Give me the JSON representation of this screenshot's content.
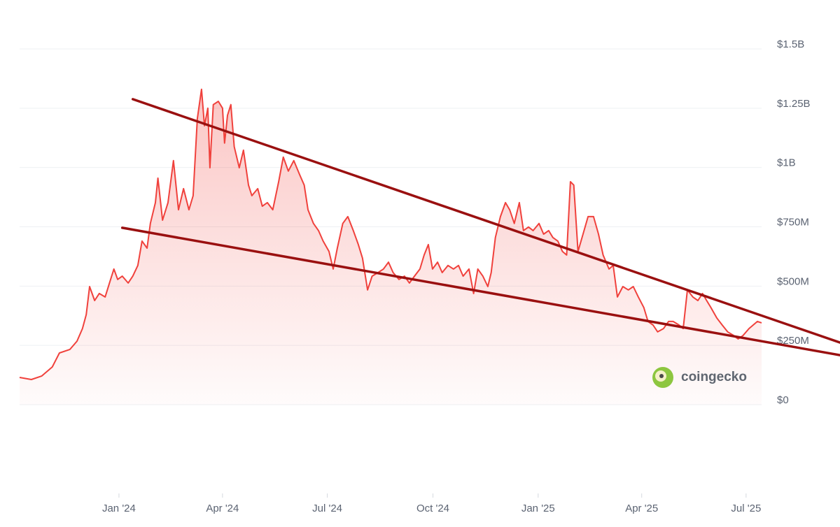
{
  "chart_data": {
    "type": "line",
    "color": "#f0413c",
    "grid": true,
    "watermark": "coingecko",
    "xlim": [
      2023.763,
      2025.533
    ],
    "xticks": [
      {
        "value": 2024.0,
        "label": "Jan '24"
      },
      {
        "value": 2024.247,
        "label": "Apr '24"
      },
      {
        "value": 2024.497,
        "label": "Jul '24"
      },
      {
        "value": 2024.749,
        "label": "Oct '24"
      },
      {
        "value": 2025.0,
        "label": "Jan '25"
      },
      {
        "value": 2025.247,
        "label": "Apr '25"
      },
      {
        "value": 2025.496,
        "label": "Jul '25"
      }
    ],
    "ylim": [
      0,
      1500000000
    ],
    "yticks": [
      {
        "value": 0,
        "label": "$0"
      },
      {
        "value": 250000000,
        "label": "$250M"
      },
      {
        "value": 500000000,
        "label": "$500M"
      },
      {
        "value": 750000000,
        "label": "$750M"
      },
      {
        "value": 1000000000,
        "label": "$1B"
      },
      {
        "value": 1250000000,
        "label": "$1.25B"
      },
      {
        "value": 1500000000,
        "label": "$1.5B"
      }
    ],
    "x": [
      2023.763,
      2023.791,
      2023.816,
      2023.841,
      2023.858,
      2023.883,
      2023.9,
      2023.913,
      2023.922,
      2023.93,
      2023.942,
      2023.953,
      2023.967,
      2023.98,
      2023.988,
      2023.997,
      2024.008,
      2024.022,
      2024.033,
      2024.045,
      2024.055,
      2024.067,
      2024.075,
      2024.087,
      2024.093,
      2024.104,
      2024.117,
      2024.13,
      2024.142,
      2024.154,
      2024.167,
      2024.177,
      2024.187,
      2024.197,
      2024.204,
      2024.212,
      2024.217,
      2024.225,
      2024.237,
      2024.247,
      2024.252,
      2024.259,
      2024.267,
      2024.275,
      2024.287,
      2024.297,
      2024.309,
      2024.317,
      2024.331,
      2024.342,
      2024.354,
      2024.367,
      2024.381,
      2024.392,
      2024.404,
      2024.417,
      2024.431,
      2024.442,
      2024.451,
      2024.464,
      2024.476,
      2024.487,
      2024.501,
      2024.511,
      2024.521,
      2024.534,
      2024.546,
      2024.559,
      2024.571,
      2024.581,
      2024.593,
      2024.604,
      2024.618,
      2024.631,
      2024.643,
      2024.654,
      2024.668,
      2024.681,
      2024.693,
      2024.705,
      2024.718,
      2024.728,
      2024.738,
      2024.748,
      2024.76,
      2024.771,
      2024.785,
      2024.798,
      2024.81,
      2024.821,
      2024.835,
      2024.846,
      2024.856,
      2024.868,
      2024.88,
      2024.888,
      2024.898,
      2024.91,
      2024.922,
      2024.932,
      2024.943,
      2024.955,
      2024.965,
      2024.977,
      2024.988,
      2025.002,
      2025.013,
      2025.025,
      2025.035,
      2025.047,
      2025.058,
      2025.068,
      2025.077,
      2025.085,
      2025.095,
      2025.107,
      2025.119,
      2025.132,
      2025.144,
      2025.155,
      2025.169,
      2025.179,
      2025.189,
      2025.202,
      2025.215,
      2025.227,
      2025.239,
      2025.252,
      2025.262,
      2025.274,
      2025.285,
      2025.299,
      2025.311,
      2025.322,
      2025.336,
      2025.346,
      2025.356,
      2025.369,
      2025.381,
      2025.392,
      2025.402,
      2025.412,
      2025.426,
      2025.439,
      2025.452,
      2025.466,
      2025.477,
      2025.489,
      2025.503,
      2025.513,
      2025.523,
      2025.533
    ],
    "values": [
      115000000,
      106000000,
      121000000,
      159000000,
      218000000,
      233000000,
      268000000,
      321000000,
      380000000,
      498000000,
      439000000,
      469000000,
      454000000,
      528000000,
      572000000,
      528000000,
      542000000,
      513000000,
      542000000,
      587000000,
      690000000,
      660000000,
      764000000,
      852000000,
      955000000,
      778000000,
      852000000,
      1029000000,
      822000000,
      911000000,
      822000000,
      881000000,
      1206000000,
      1330000000,
      1176000000,
      1250000000,
      999000000,
      1265000000,
      1279000000,
      1250000000,
      1103000000,
      1220000000,
      1265000000,
      1088000000,
      999000000,
      1073000000,
      926000000,
      881000000,
      911000000,
      837000000,
      852000000,
      822000000,
      940000000,
      1044000000,
      985000000,
      1029000000,
      970000000,
      926000000,
      822000000,
      764000000,
      734000000,
      690000000,
      646000000,
      572000000,
      660000000,
      764000000,
      793000000,
      734000000,
      675000000,
      617000000,
      484000000,
      542000000,
      557000000,
      572000000,
      601000000,
      557000000,
      528000000,
      542000000,
      513000000,
      542000000,
      572000000,
      631000000,
      675000000,
      572000000,
      601000000,
      557000000,
      587000000,
      572000000,
      587000000,
      542000000,
      572000000,
      469000000,
      572000000,
      542000000,
      498000000,
      557000000,
      705000000,
      793000000,
      852000000,
      822000000,
      764000000,
      852000000,
      734000000,
      749000000,
      734000000,
      764000000,
      719000000,
      734000000,
      705000000,
      690000000,
      646000000,
      631000000,
      940000000,
      926000000,
      646000000,
      719000000,
      793000000,
      793000000,
      719000000,
      631000000,
      572000000,
      587000000,
      454000000,
      498000000,
      484000000,
      498000000,
      454000000,
      410000000,
      351000000,
      336000000,
      307000000,
      321000000,
      351000000,
      351000000,
      336000000,
      321000000,
      484000000,
      454000000,
      439000000,
      469000000,
      439000000,
      410000000,
      366000000,
      336000000,
      307000000,
      292000000,
      277000000,
      292000000,
      321000000,
      336000000,
      351000000,
      345000000
    ],
    "trendlines": [
      {
        "color": "#9a1010",
        "x": [
          2024.033,
          2025.72
        ],
        "values": [
          1288000000,
          262000000
        ]
      },
      {
        "color": "#9a1010",
        "x": [
          2024.008,
          2025.72
        ],
        "values": [
          746000000,
          209000000
        ]
      }
    ]
  }
}
